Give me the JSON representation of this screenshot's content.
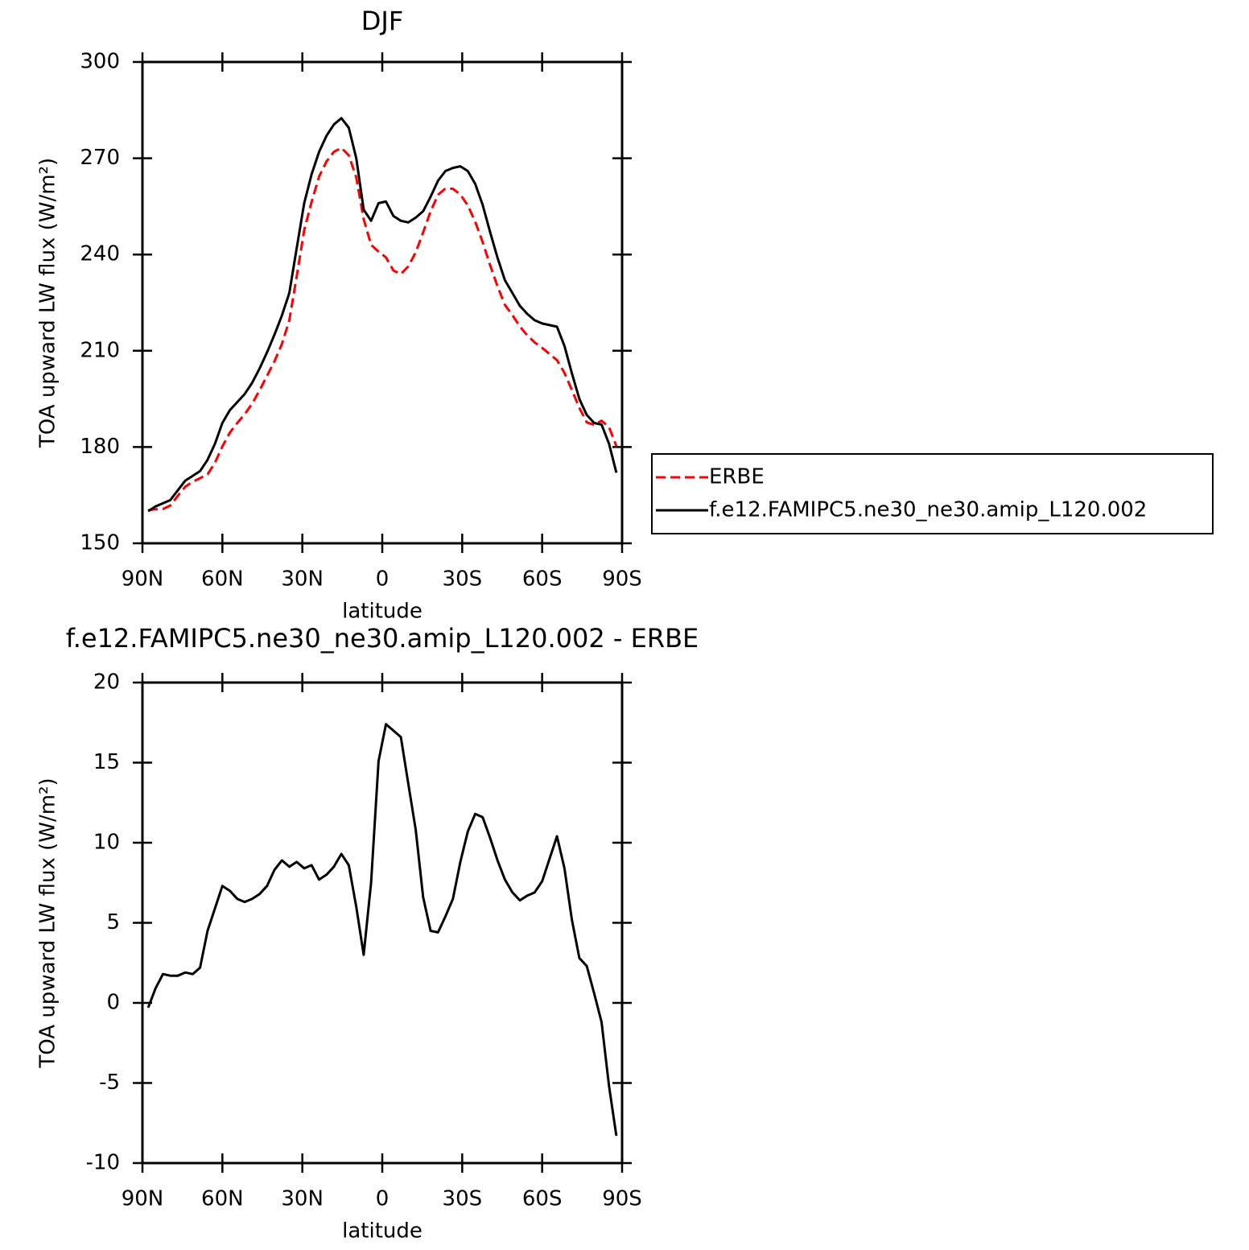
{
  "chart_data": [
    {
      "type": "line",
      "title": "DJF",
      "xlabel": "latitude",
      "ylabel": "TOA upward LW flux (W/m²)",
      "xlim": [
        90,
        -90
      ],
      "xticks": [
        {
          "value": 90,
          "label": "90N"
        },
        {
          "value": 60,
          "label": "60N"
        },
        {
          "value": 30,
          "label": "30N"
        },
        0,
        {
          "value": -30,
          "label": "30S"
        },
        {
          "value": -60,
          "label": "60S"
        },
        {
          "value": -90,
          "label": "90S"
        }
      ],
      "ylim": [
        150,
        300
      ],
      "yticks": [
        150,
        180,
        210,
        240,
        270,
        300
      ],
      "legend": "right",
      "x": [
        87.86,
        85.1,
        82.31,
        79.53,
        76.74,
        73.95,
        71.16,
        68.37,
        65.58,
        62.79,
        60.0,
        57.21,
        54.42,
        51.63,
        48.84,
        46.04,
        43.25,
        40.46,
        37.67,
        34.88,
        32.09,
        29.3,
        26.51,
        23.72,
        20.93,
        18.14,
        15.35,
        12.56,
        9.77,
        6.98,
        4.19,
        1.4,
        -1.4,
        -4.19,
        -6.98,
        -9.77,
        -12.56,
        -15.35,
        -18.14,
        -20.93,
        -23.72,
        -26.51,
        -29.3,
        -32.09,
        -34.88,
        -37.67,
        -40.46,
        -43.25,
        -46.04,
        -48.84,
        -51.63,
        -54.42,
        -57.21,
        -60.0,
        -62.79,
        -65.58,
        -68.37,
        -71.16,
        -73.95,
        -76.74,
        -79.53,
        -82.31,
        -85.1,
        -87.86
      ],
      "series": [
        {
          "name": "ERBE",
          "color": "#ff0000",
          "style": "dashed",
          "values": [
            160.3,
            160.6,
            160.7,
            161.8,
            164.8,
            167.6,
            169.2,
            170.3,
            171.5,
            175.1,
            180.2,
            184.5,
            187.5,
            190.2,
            193.5,
            197.7,
            202.2,
            206.7,
            212.1,
            219.5,
            233.2,
            247.6,
            256.4,
            264.3,
            269,
            272,
            273.2,
            270.9,
            264,
            251,
            243,
            240.9,
            239.1,
            235,
            233.9,
            236.3,
            240.7,
            246.9,
            253.5,
            258.6,
            260.6,
            260.5,
            258.7,
            255.3,
            250.2,
            243.9,
            236.7,
            230.1,
            224.3,
            221.1,
            217.6,
            214.8,
            212.6,
            210.9,
            209,
            207.1,
            203.1,
            197.8,
            192.2,
            187.7,
            186.9,
            188.2,
            186.2,
            180.3
          ]
        },
        {
          "name": "f.e12.FAMIPC5.ne30_ne30.amip_L120.002",
          "color": "#000000",
          "style": "solid",
          "values": [
            160,
            161.5,
            162.5,
            163.5,
            166.5,
            169.5,
            171,
            172.5,
            176,
            181,
            187.5,
            191.5,
            194,
            196.5,
            200,
            204.5,
            209.5,
            215,
            221,
            228,
            242,
            256,
            265,
            272,
            277,
            280.5,
            282.5,
            279.5,
            270,
            254,
            250.5,
            256,
            256.5,
            252,
            250.5,
            250,
            251.5,
            253.5,
            258,
            263,
            266,
            267,
            267.5,
            266,
            262,
            255.5,
            247,
            239,
            232,
            228,
            224,
            221.5,
            219.5,
            218.5,
            218,
            217.5,
            211.5,
            203,
            195,
            190,
            187.5,
            187,
            181,
            172
          ]
        }
      ]
    },
    {
      "type": "line",
      "title": "f.e12.FAMIPC5.ne30_ne30.amip_L120.002 - ERBE",
      "xlabel": "latitude",
      "ylabel": "TOA upward LW flux (W/m²)",
      "xlim": [
        90,
        -90
      ],
      "xticks": [
        {
          "value": 90,
          "label": "90N"
        },
        {
          "value": 60,
          "label": "60N"
        },
        {
          "value": 30,
          "label": "30N"
        },
        0,
        {
          "value": -30,
          "label": "30S"
        },
        {
          "value": -60,
          "label": "60S"
        },
        {
          "value": -90,
          "label": "90S"
        }
      ],
      "ylim": [
        -10,
        20
      ],
      "yticks": [
        -10,
        -5,
        0,
        5,
        10,
        15,
        20
      ],
      "color": "#000000",
      "x": [
        87.86,
        85.1,
        82.31,
        79.53,
        76.74,
        73.95,
        71.16,
        68.37,
        65.58,
        62.79,
        60.0,
        57.21,
        54.42,
        51.63,
        48.84,
        46.04,
        43.25,
        40.46,
        37.67,
        34.88,
        32.09,
        29.3,
        26.51,
        23.72,
        20.93,
        18.14,
        15.35,
        12.56,
        9.77,
        6.98,
        4.19,
        1.4,
        -1.4,
        -4.19,
        -6.98,
        -9.77,
        -12.56,
        -15.35,
        -18.14,
        -20.93,
        -23.72,
        -26.51,
        -29.3,
        -32.09,
        -34.88,
        -37.67,
        -40.46,
        -43.25,
        -46.04,
        -48.84,
        -51.63,
        -54.42,
        -57.21,
        -60.0,
        -62.79,
        -65.58,
        -68.37,
        -71.16,
        -73.95,
        -76.74,
        -79.53,
        -82.31,
        -85.1,
        -87.86
      ],
      "values": [
        -0.3,
        0.9,
        1.8,
        1.7,
        1.7,
        1.9,
        1.8,
        2.2,
        4.5,
        5.9,
        7.3,
        7.0,
        6.5,
        6.3,
        6.5,
        6.8,
        7.3,
        8.3,
        8.9,
        8.5,
        8.8,
        8.4,
        8.6,
        7.7,
        8.0,
        8.5,
        9.3,
        8.6,
        6.0,
        3.0,
        7.5,
        15.1,
        17.4,
        17.0,
        16.6,
        13.7,
        10.8,
        6.6,
        4.5,
        4.4,
        5.4,
        6.5,
        8.8,
        10.7,
        11.8,
        11.6,
        10.3,
        8.9,
        7.7,
        6.9,
        6.4,
        6.7,
        6.9,
        7.6,
        9.0,
        10.4,
        8.4,
        5.2,
        2.8,
        2.3,
        0.6,
        -1.2,
        -5.2,
        -8.3
      ]
    }
  ]
}
